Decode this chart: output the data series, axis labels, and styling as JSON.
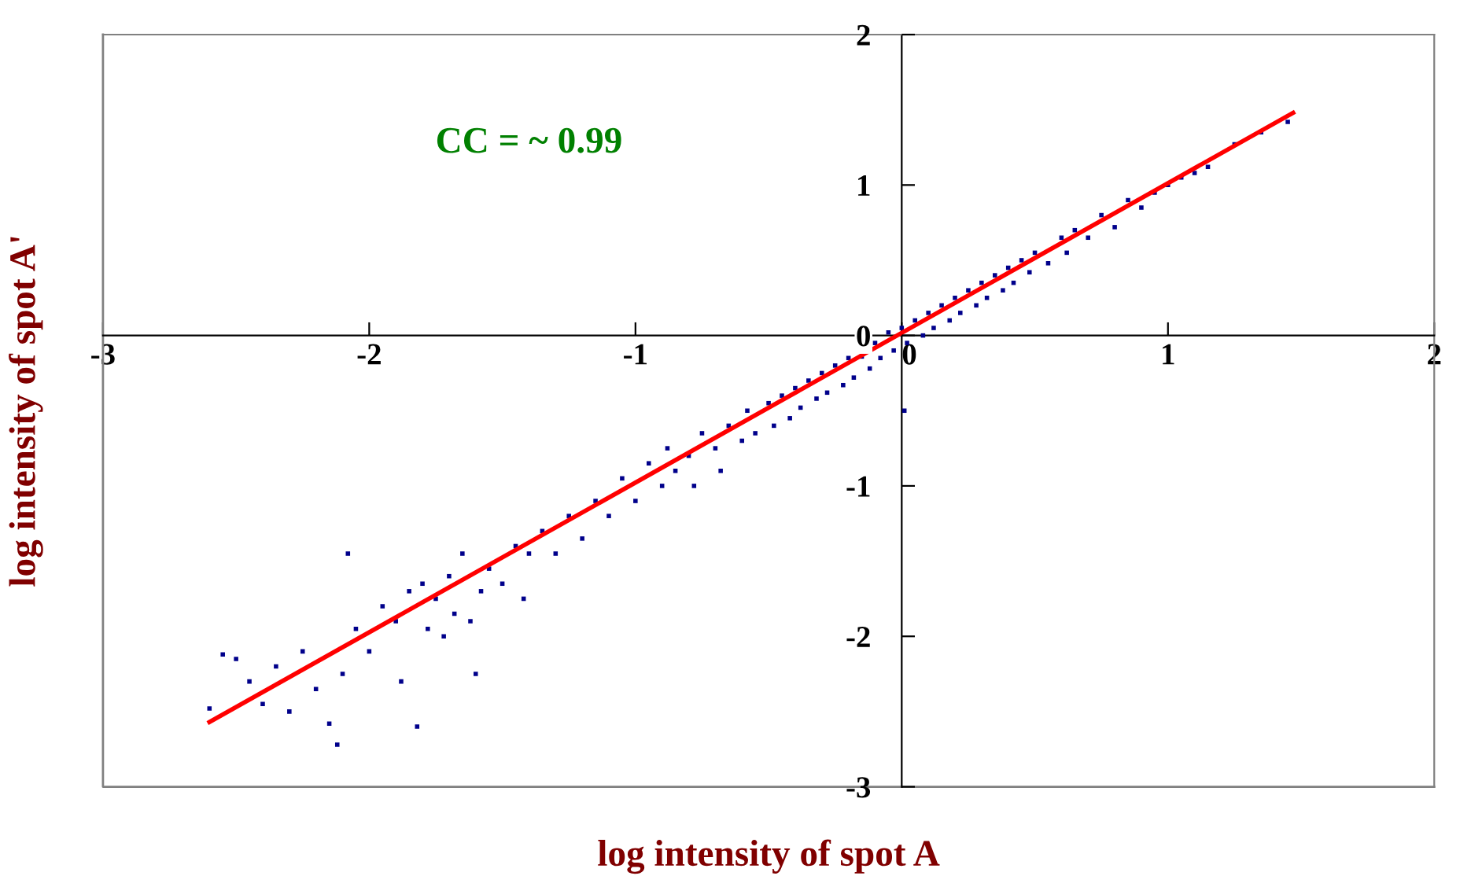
{
  "chart_data": {
    "type": "scatter",
    "xlabel": "log intensity of spot A",
    "ylabel": "log intensity of spot A'",
    "annotations": [
      "CC = ~ 0.99"
    ],
    "xlim": [
      -3,
      2
    ],
    "ylim": [
      -3,
      2
    ],
    "xticks": [
      -3,
      -2,
      -1,
      0,
      1,
      2
    ],
    "yticks": [
      -3,
      -2,
      -1,
      0,
      1,
      2
    ],
    "grid": false,
    "series": [
      {
        "color": "#00008b",
        "marker": "square",
        "x": [
          -2.6,
          -2.55,
          -2.5,
          -2.45,
          -2.4,
          -2.35,
          -2.3,
          -2.25,
          -2.2,
          -2.15,
          -2.12,
          -2.1,
          -2.08,
          -2.05,
          -2.0,
          -1.95,
          -1.9,
          -1.88,
          -1.85,
          -1.82,
          -1.8,
          -1.78,
          -1.75,
          -1.72,
          -1.7,
          -1.68,
          -1.65,
          -1.62,
          -1.6,
          -1.58,
          -1.55,
          -1.5,
          -1.45,
          -1.42,
          -1.4,
          -1.35,
          -1.3,
          -1.25,
          -1.2,
          -1.15,
          -1.1,
          -1.05,
          -1.0,
          -0.95,
          -0.9,
          -0.88,
          -0.85,
          -0.8,
          -0.78,
          -0.75,
          -0.7,
          -0.68,
          -0.65,
          -0.6,
          -0.58,
          -0.55,
          -0.5,
          -0.48,
          -0.45,
          -0.42,
          -0.4,
          -0.38,
          -0.35,
          -0.32,
          -0.3,
          -0.28,
          -0.25,
          -0.22,
          -0.2,
          -0.18,
          -0.15,
          -0.12,
          -0.1,
          -0.08,
          -0.05,
          -0.03,
          0.0,
          0.02,
          0.05,
          0.08,
          0.1,
          0.12,
          0.15,
          0.18,
          0.2,
          0.22,
          0.25,
          0.28,
          0.3,
          0.32,
          0.35,
          0.38,
          0.4,
          0.42,
          0.45,
          0.48,
          0.5,
          0.55,
          0.6,
          0.62,
          0.65,
          0.7,
          0.75,
          0.8,
          0.85,
          0.9,
          0.95,
          1.0,
          1.05,
          1.1,
          1.15,
          1.25,
          1.35,
          1.45,
          0.01
        ],
        "values": [
          -2.48,
          -2.12,
          -2.15,
          -2.3,
          -2.45,
          -2.2,
          -2.5,
          -2.1,
          -2.35,
          -2.58,
          -2.72,
          -2.25,
          -1.45,
          -1.95,
          -2.1,
          -1.8,
          -1.9,
          -2.3,
          -1.7,
          -2.6,
          -1.65,
          -1.95,
          -1.75,
          -2.0,
          -1.6,
          -1.85,
          -1.45,
          -1.9,
          -2.25,
          -1.7,
          -1.55,
          -1.65,
          -1.4,
          -1.75,
          -1.45,
          -1.3,
          -1.45,
          -1.2,
          -1.35,
          -1.1,
          -1.2,
          -0.95,
          -1.1,
          -0.85,
          -1.0,
          -0.75,
          -0.9,
          -0.8,
          -1.0,
          -0.65,
          -0.75,
          -0.9,
          -0.6,
          -0.7,
          -0.5,
          -0.65,
          -0.45,
          -0.6,
          -0.4,
          -0.55,
          -0.35,
          -0.48,
          -0.3,
          -0.42,
          -0.25,
          -0.38,
          -0.2,
          -0.33,
          -0.15,
          -0.28,
          -0.14,
          -0.22,
          -0.05,
          -0.15,
          0.02,
          -0.1,
          0.05,
          -0.05,
          0.1,
          0.0,
          0.15,
          0.05,
          0.2,
          0.1,
          0.25,
          0.15,
          0.3,
          0.2,
          0.35,
          0.25,
          0.4,
          0.3,
          0.45,
          0.35,
          0.5,
          0.42,
          0.55,
          0.48,
          0.65,
          0.55,
          0.7,
          0.65,
          0.8,
          0.72,
          0.9,
          0.85,
          0.95,
          1.0,
          1.05,
          1.08,
          1.12,
          1.27,
          1.35,
          1.42,
          -0.5
        ]
      },
      {
        "type": "line",
        "color": "#ff0000",
        "x": [
          -2.6,
          1.47
        ],
        "values": [
          -2.57,
          1.48
        ]
      }
    ]
  }
}
